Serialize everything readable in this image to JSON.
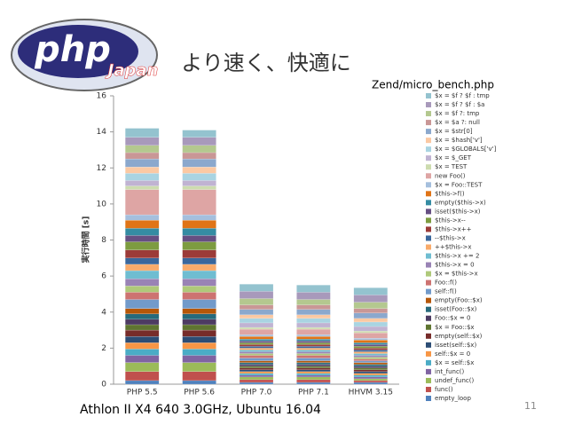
{
  "logo": {
    "text": "php",
    "subtitle": "Japan"
  },
  "slide_title": "より速く、快適に",
  "footer": "Athlon II X4 640 3.0GHz, Ubuntu 16.04",
  "page_number": "11",
  "chart_data": {
    "type": "bar",
    "stacked": true,
    "title": "Zend/micro_bench.php",
    "y_label": "実行時間 [s]",
    "categories": [
      "PHP 5.5",
      "PHP 5.6",
      "PHP 7.0",
      "PHP 7.1",
      "HHVM 3.15"
    ],
    "ylim": [
      0,
      16
    ],
    "yticks": [
      0,
      2,
      4,
      6,
      8,
      10,
      12,
      14,
      16
    ],
    "series": [
      {
        "name": "empty_loop",
        "color": "#4f81bd",
        "values": [
          0.2,
          0.2,
          0.1,
          0.1,
          0.1
        ]
      },
      {
        "name": "func()",
        "color": "#c0504d",
        "values": [
          0.5,
          0.5,
          0.15,
          0.15,
          0.1
        ]
      },
      {
        "name": "undef_func()",
        "color": "#9bbb59",
        "values": [
          0.5,
          0.5,
          0.15,
          0.15,
          0.1
        ]
      },
      {
        "name": "int_func()",
        "color": "#8064a2",
        "values": [
          0.4,
          0.4,
          0.1,
          0.1,
          0.1
        ]
      },
      {
        "name": "$x = self::$x",
        "color": "#4bacc6",
        "values": [
          0.35,
          0.35,
          0.1,
          0.1,
          0.1
        ]
      },
      {
        "name": "self::$x = 0",
        "color": "#f79646",
        "values": [
          0.35,
          0.35,
          0.1,
          0.1,
          0.1
        ]
      },
      {
        "name": "isset(self::$x)",
        "color": "#2c4d75",
        "values": [
          0.35,
          0.35,
          0.1,
          0.1,
          0.1
        ]
      },
      {
        "name": "empty(self::$x)",
        "color": "#772c2a",
        "values": [
          0.35,
          0.35,
          0.1,
          0.1,
          0.1
        ]
      },
      {
        "name": "$x = Foo::$x",
        "color": "#5f7530",
        "values": [
          0.3,
          0.3,
          0.1,
          0.1,
          0.1
        ]
      },
      {
        "name": "Foo::$x = 0",
        "color": "#4d3b62",
        "values": [
          0.3,
          0.3,
          0.1,
          0.1,
          0.1
        ]
      },
      {
        "name": "isset(Foo::$x)",
        "color": "#276a7c",
        "values": [
          0.3,
          0.3,
          0.1,
          0.1,
          0.1
        ]
      },
      {
        "name": "empty(Foo::$x)",
        "color": "#b65708",
        "values": [
          0.3,
          0.3,
          0.1,
          0.1,
          0.1
        ]
      },
      {
        "name": "self::f()",
        "color": "#729aca",
        "values": [
          0.5,
          0.5,
          0.15,
          0.15,
          0.1
        ]
      },
      {
        "name": "Foo::f()",
        "color": "#cd7371",
        "values": [
          0.4,
          0.4,
          0.15,
          0.15,
          0.1
        ]
      },
      {
        "name": "$x = $this->x",
        "color": "#afc97a",
        "values": [
          0.35,
          0.35,
          0.1,
          0.1,
          0.1
        ]
      },
      {
        "name": "$this->x = 0",
        "color": "#9983b5",
        "values": [
          0.4,
          0.4,
          0.1,
          0.1,
          0.1
        ]
      },
      {
        "name": "$this->x += 2",
        "color": "#6fbdd1",
        "values": [
          0.45,
          0.45,
          0.1,
          0.1,
          0.1
        ]
      },
      {
        "name": "++$this->x",
        "color": "#f9ab6b",
        "values": [
          0.35,
          0.35,
          0.1,
          0.1,
          0.1
        ]
      },
      {
        "name": "--$this->x",
        "color": "#3a679c",
        "values": [
          0.35,
          0.35,
          0.1,
          0.1,
          0.1
        ]
      },
      {
        "name": "$this->x++",
        "color": "#9c3b38",
        "values": [
          0.45,
          0.45,
          0.1,
          0.1,
          0.1
        ]
      },
      {
        "name": "$this->x--",
        "color": "#7d9c40",
        "values": [
          0.45,
          0.45,
          0.1,
          0.1,
          0.1
        ]
      },
      {
        "name": "isset($this->x)",
        "color": "#664f82",
        "values": [
          0.35,
          0.35,
          0.1,
          0.1,
          0.1
        ]
      },
      {
        "name": "empty($this->x)",
        "color": "#358ca3",
        "values": [
          0.4,
          0.4,
          0.1,
          0.1,
          0.1
        ]
      },
      {
        "name": "$this->f()",
        "color": "#e07417",
        "values": [
          0.45,
          0.45,
          0.15,
          0.15,
          0.15
        ]
      },
      {
        "name": "$x = Foo::TEST",
        "color": "#a5bfdd",
        "values": [
          0.3,
          0.3,
          0.1,
          0.1,
          0.1
        ]
      },
      {
        "name": "new Foo()",
        "color": "#dea5a4",
        "values": [
          1.4,
          1.4,
          0.3,
          0.3,
          0.3
        ]
      },
      {
        "name": "$x = TEST",
        "color": "#cddcaf",
        "values": [
          0.2,
          0.2,
          0.1,
          0.1,
          0.1
        ]
      },
      {
        "name": "$x = $_GET",
        "color": "#c0b3d2",
        "values": [
          0.3,
          0.3,
          0.25,
          0.25,
          0.25
        ]
      },
      {
        "name": "$x = $GLOBALS['v']",
        "color": "#a9d4e2",
        "values": [
          0.4,
          0.4,
          0.25,
          0.25,
          0.25
        ]
      },
      {
        "name": "$x = $hash['v']",
        "color": "#fbc9a3",
        "values": [
          0.35,
          0.35,
          0.2,
          0.2,
          0.2
        ]
      },
      {
        "name": "$x = $str[0]",
        "color": "#8ba8cd",
        "values": [
          0.45,
          0.45,
          0.3,
          0.3,
          0.3
        ]
      },
      {
        "name": "$x = $a ?: null",
        "color": "#c99796",
        "values": [
          0.35,
          0.35,
          0.25,
          0.25,
          0.25
        ]
      },
      {
        "name": "$x = $f ?: tmp",
        "color": "#b4c88f",
        "values": [
          0.4,
          0.4,
          0.35,
          0.3,
          0.35
        ]
      },
      {
        "name": "$x = $f ? $f : $a",
        "color": "#a899bb",
        "values": [
          0.45,
          0.45,
          0.4,
          0.4,
          0.4
        ]
      },
      {
        "name": "$x = $f ? $f : tmp",
        "color": "#94c3cf",
        "values": [
          0.5,
          0.4,
          0.4,
          0.4,
          0.4
        ]
      }
    ]
  }
}
